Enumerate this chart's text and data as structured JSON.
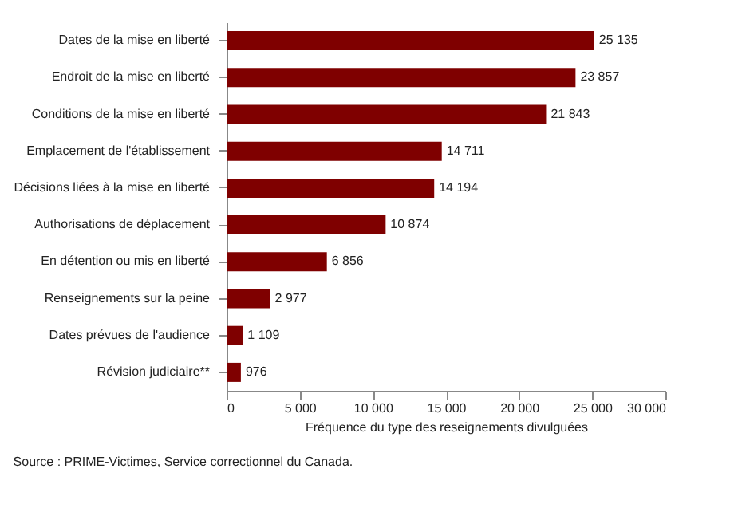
{
  "chart_data": {
    "type": "bar",
    "orientation": "horizontal",
    "categories": [
      "Dates de la mise en liberté",
      "Endroit de la mise en liberté",
      "Conditions de la mise en liberté",
      "Emplacement de l'établissement",
      "Décisions liées à la mise en liberté",
      "Authorisations de déplacement",
      "En détention ou mis en liberté",
      "Renseignements sur la peine",
      "Dates prévues de l'audience",
      "Révision judiciaire**"
    ],
    "values": [
      25135,
      23857,
      21843,
      14711,
      14194,
      10874,
      6856,
      2977,
      1109,
      976
    ],
    "value_labels": [
      "25 135",
      "23 857",
      "21 843",
      "14 711",
      "14 194",
      "10 874",
      "6 856",
      "2 977",
      "1 109",
      "976"
    ],
    "color": "#7f0000",
    "xlim": [
      0,
      30000
    ],
    "xticks": [
      0,
      {
        "value": 5000,
        "label": "5 000"
      },
      {
        "value": 10000,
        "label": "10 000"
      },
      {
        "value": 15000,
        "label": "15 000"
      },
      {
        "value": 20000,
        "label": "20 000"
      },
      {
        "value": 25000,
        "label": "25 000"
      },
      {
        "value": 30000,
        "label": "30 000"
      }
    ],
    "xlabel": "Fréquence du type des reseignements divulguées",
    "grid": false,
    "annotations": [
      "Source : PRIME-Victimes, Service correctionnel du Canada."
    ]
  }
}
